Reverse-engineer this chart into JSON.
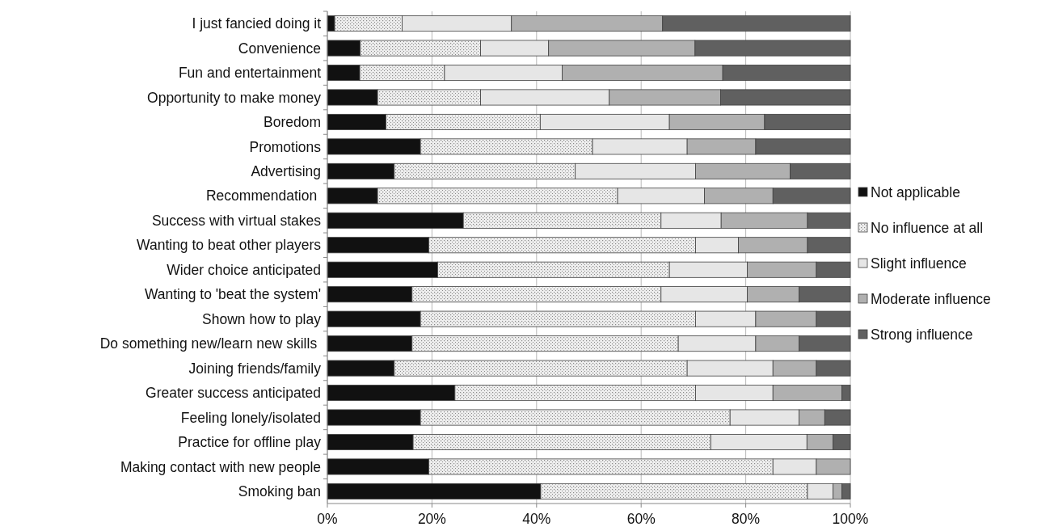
{
  "chart_data": {
    "type": "bar",
    "orientation": "horizontal",
    "stacked": true,
    "categories": [
      "I just fancied doing it",
      "Convenience",
      "Fun and entertainment",
      "Opportunity to make money",
      "Boredom",
      "Promotions",
      "Advertising",
      "Recommendation ",
      "Success with virtual stakes",
      "Wanting to beat other players",
      "Wider choice anticipated",
      "Wanting to 'beat the system'",
      "Shown how to play",
      "Do something new/learn new skills ",
      "Joining friends/family",
      "Greater success anticipated",
      "Feeling lonely/isolated",
      "Practice for offline play",
      "Making contact with new people",
      "Smoking ban"
    ],
    "series": [
      {
        "name": "Not applicable",
        "color": "#111111",
        "values": [
          1.4,
          6.3,
          6.2,
          9.6,
          11.2,
          17.8,
          12.8,
          9.6,
          26.0,
          19.4,
          21.1,
          16.2,
          17.8,
          16.2,
          12.8,
          24.4,
          17.8,
          16.4,
          19.4,
          40.8
        ]
      },
      {
        "name": "No influence at all",
        "color": "#eeeeee",
        "values": [
          12.9,
          23.0,
          16.2,
          19.7,
          29.5,
          32.9,
          34.6,
          45.9,
          37.8,
          51.0,
          44.3,
          47.6,
          52.6,
          50.9,
          56.0,
          46.0,
          59.2,
          56.9,
          65.8,
          51.0
        ]
      },
      {
        "name": "Slight influence",
        "color": "#e6e6e6",
        "values": [
          20.9,
          13.0,
          22.5,
          24.6,
          24.7,
          18.1,
          23.0,
          16.6,
          11.5,
          8.2,
          14.9,
          16.5,
          11.5,
          14.8,
          16.4,
          14.8,
          13.2,
          18.4,
          8.3,
          4.9
        ]
      },
      {
        "name": "Moderate influence",
        "color": "#b0b0b0",
        "values": [
          28.9,
          28.0,
          30.7,
          21.3,
          18.2,
          13.1,
          18.1,
          13.1,
          16.5,
          13.2,
          13.2,
          9.9,
          11.6,
          8.3,
          8.3,
          13.2,
          4.9,
          5.0,
          6.5,
          1.7
        ]
      },
      {
        "name": "Strong influence",
        "color": "#606060",
        "values": [
          35.9,
          29.7,
          24.4,
          24.8,
          16.4,
          18.1,
          11.5,
          14.8,
          8.2,
          8.2,
          6.5,
          9.8,
          6.5,
          9.8,
          6.5,
          1.6,
          4.9,
          3.3,
          0,
          1.6
        ]
      }
    ],
    "xlim": [
      0,
      100
    ],
    "xticks": [
      {
        "value": 0,
        "label": "0%"
      },
      {
        "value": 20,
        "label": "20%"
      },
      {
        "value": 40,
        "label": "40%"
      },
      {
        "value": 60,
        "label": "60%"
      },
      {
        "value": 80,
        "label": "80%"
      },
      {
        "value": 100,
        "label": "100%"
      }
    ],
    "grid": "x",
    "legend": "right"
  }
}
